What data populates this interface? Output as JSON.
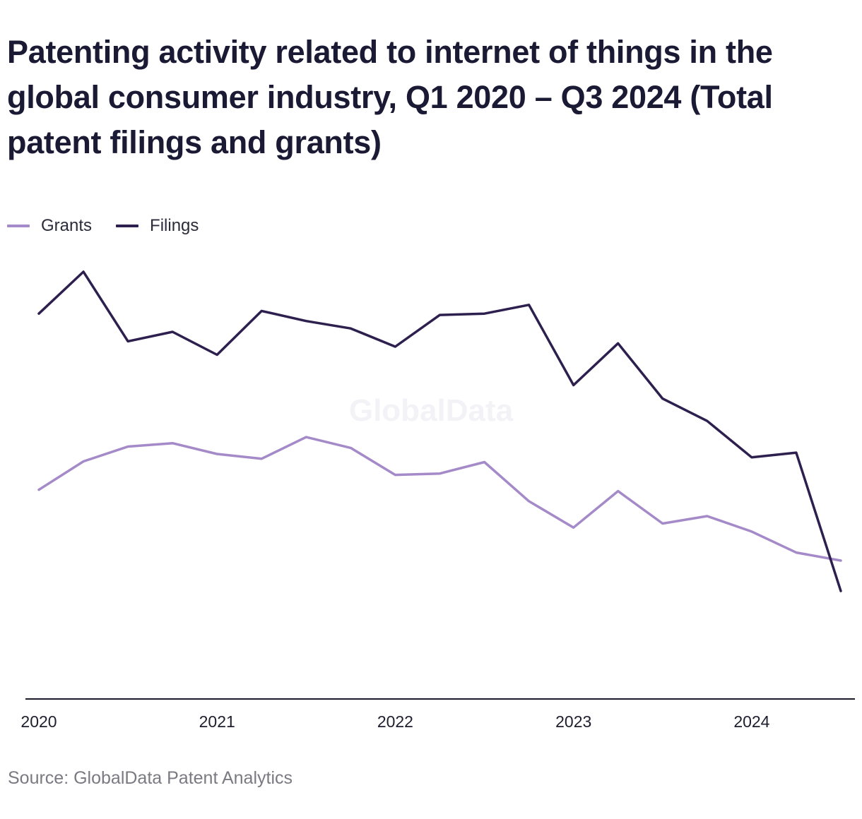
{
  "title": "Patenting activity related to internet of things in the global consumer industry, Q1 2020 – Q3 2024 (Total patent filings and grants)",
  "source": "Source: GlobalData Patent Analytics",
  "watermark": "GlobalData",
  "colors": {
    "grants": "#a48ac8",
    "filings": "#2d1f4e",
    "axis": "#1a1a2a"
  },
  "chart_data": {
    "type": "line",
    "title": "Patenting activity related to internet of things in the global consumer industry, Q1 2020 – Q3 2024 (Total patent filings and grants)",
    "x": [
      "Q1 2020",
      "Q2 2020",
      "Q3 2020",
      "Q4 2020",
      "Q1 2021",
      "Q2 2021",
      "Q3 2021",
      "Q4 2021",
      "Q1 2022",
      "Q2 2022",
      "Q3 2022",
      "Q4 2022",
      "Q1 2023",
      "Q2 2023",
      "Q3 2023",
      "Q4 2023",
      "Q1 2024",
      "Q2 2024",
      "Q3 2024"
    ],
    "x_ticks": [
      "2020",
      "2021",
      "2022",
      "2023",
      "2024"
    ],
    "series": [
      {
        "name": "Grants",
        "color": "#a48ac8",
        "values": [
          530,
          572,
          594,
          599,
          583,
          576,
          608,
          592,
          552,
          554,
          571,
          513,
          474,
          528,
          480,
          491,
          468,
          437,
          425
        ]
      },
      {
        "name": "Filings",
        "color": "#2d1f4e",
        "values": [
          791,
          853,
          750,
          764,
          730,
          795,
          780,
          769,
          742,
          789,
          791,
          804,
          685,
          747,
          665,
          632,
          578,
          585,
          380
        ]
      }
    ],
    "ylim": [
      220,
      900
    ],
    "grid": false,
    "legend": "top-left"
  }
}
